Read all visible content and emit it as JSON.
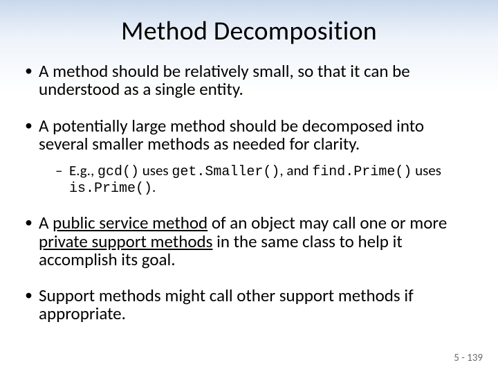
{
  "colors": {
    "gradient_top": "#c8d8ec",
    "gradient_mid": "#eef3fa",
    "background": "#ffffff",
    "text": "#000000",
    "page_num": "#6b6b6b"
  },
  "typography": {
    "title_fontsize": 38,
    "bullet_fontsize": 25,
    "subbullet_fontsize": 21,
    "code_fontsize": 20,
    "pagenum_fontsize": 15,
    "font_family": "Calibri",
    "code_font_family": "Consolas"
  },
  "title": "Method Decomposition",
  "bullets": {
    "b1": "A method should be relatively small, so that it can be understood as a single entity.",
    "b2": "A potentially large method should be decomposed into several smaller methods as needed for clarity.",
    "b2_sub": {
      "prefix": "E.g., ",
      "code1": "gcd()",
      "mid1": " uses ",
      "code2": "get.Smaller()",
      "mid2": ", and ",
      "code3": "find.Prime()",
      "mid3": " uses ",
      "code4": "is.Prime()",
      "suffix": "."
    },
    "b3": {
      "pre": "A ",
      "u1": "public service method",
      "mid": " of an object may call one or more ",
      "u2": "private support methods",
      "post": " in the same class to help it accomplish its goal."
    },
    "b4": "Support methods might call other support methods if appropriate."
  },
  "page_number": "5 - 139"
}
